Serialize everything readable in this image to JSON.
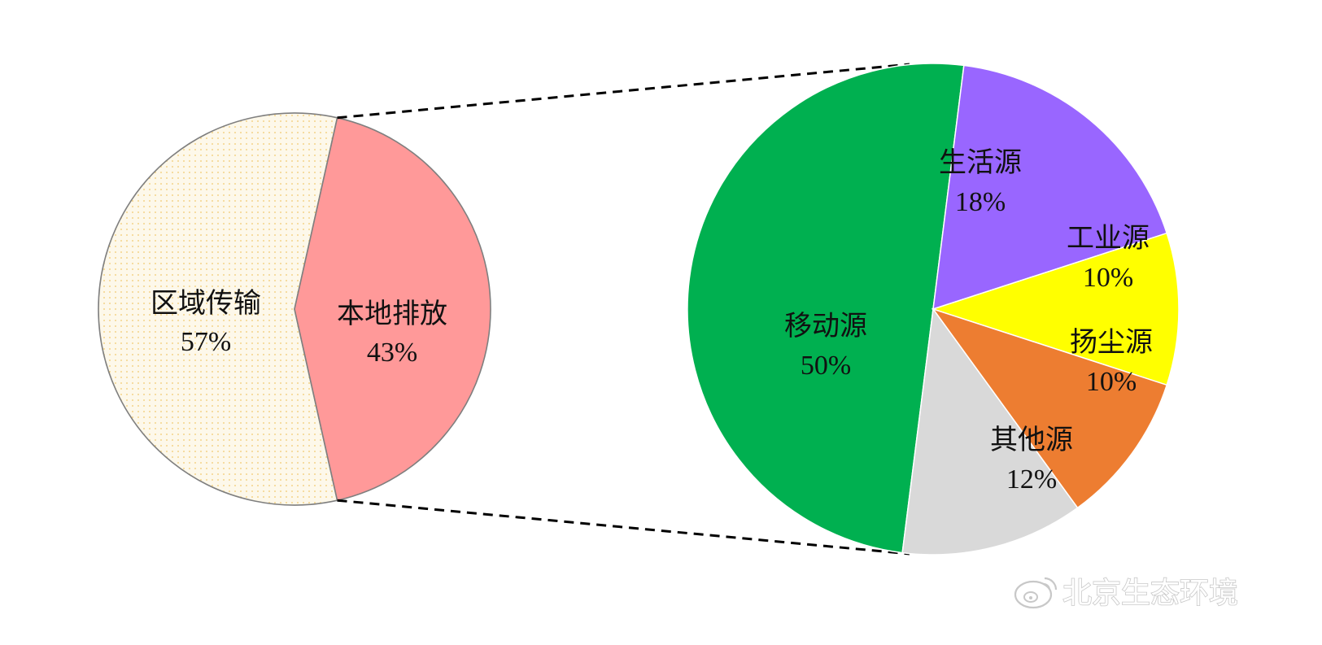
{
  "chart_data": [
    {
      "type": "pie",
      "slices": [
        {
          "label": "区域传输",
          "value": 57,
          "value_label": "57%",
          "color": "#fdf8ea"
        },
        {
          "label": "本地排放",
          "value": 43,
          "value_label": "43%",
          "color": "#ff9999"
        }
      ]
    },
    {
      "type": "pie",
      "breakdown_of": "本地排放",
      "slices": [
        {
          "label": "移动源",
          "value": 50,
          "value_label": "50%",
          "color": "#00b050"
        },
        {
          "label": "生活源",
          "value": 18,
          "value_label": "18%",
          "color": "#9966ff"
        },
        {
          "label": "工业源",
          "value": 10,
          "value_label": "10%",
          "color": "#ffff00"
        },
        {
          "label": "扬尘源",
          "value": 10,
          "value_label": "10%",
          "color": "#ed7d31"
        },
        {
          "label": "其他源",
          "value": 12,
          "value_label": "12%",
          "color": "#d9d9d9"
        }
      ]
    }
  ],
  "watermark": {
    "text": "北京生态环境",
    "icon": "weibo-icon"
  }
}
